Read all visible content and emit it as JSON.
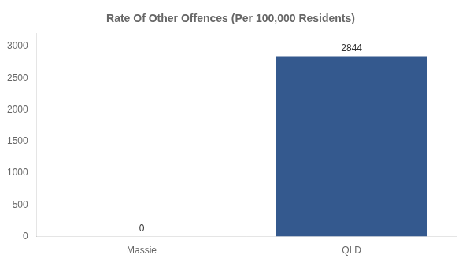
{
  "chart_data": {
    "type": "bar",
    "title": "Rate Of Other Offences (Per 100,000 Residents)",
    "categories": [
      "Massie",
      "QLD"
    ],
    "values": [
      0,
      2844
    ],
    "colors": [
      "#34598e",
      "#34598e"
    ],
    "ylim": [
      0,
      3200
    ],
    "yticks": [
      0,
      500,
      1000,
      1500,
      2000,
      2500,
      3000
    ],
    "grid": false,
    "data_labels": true
  }
}
